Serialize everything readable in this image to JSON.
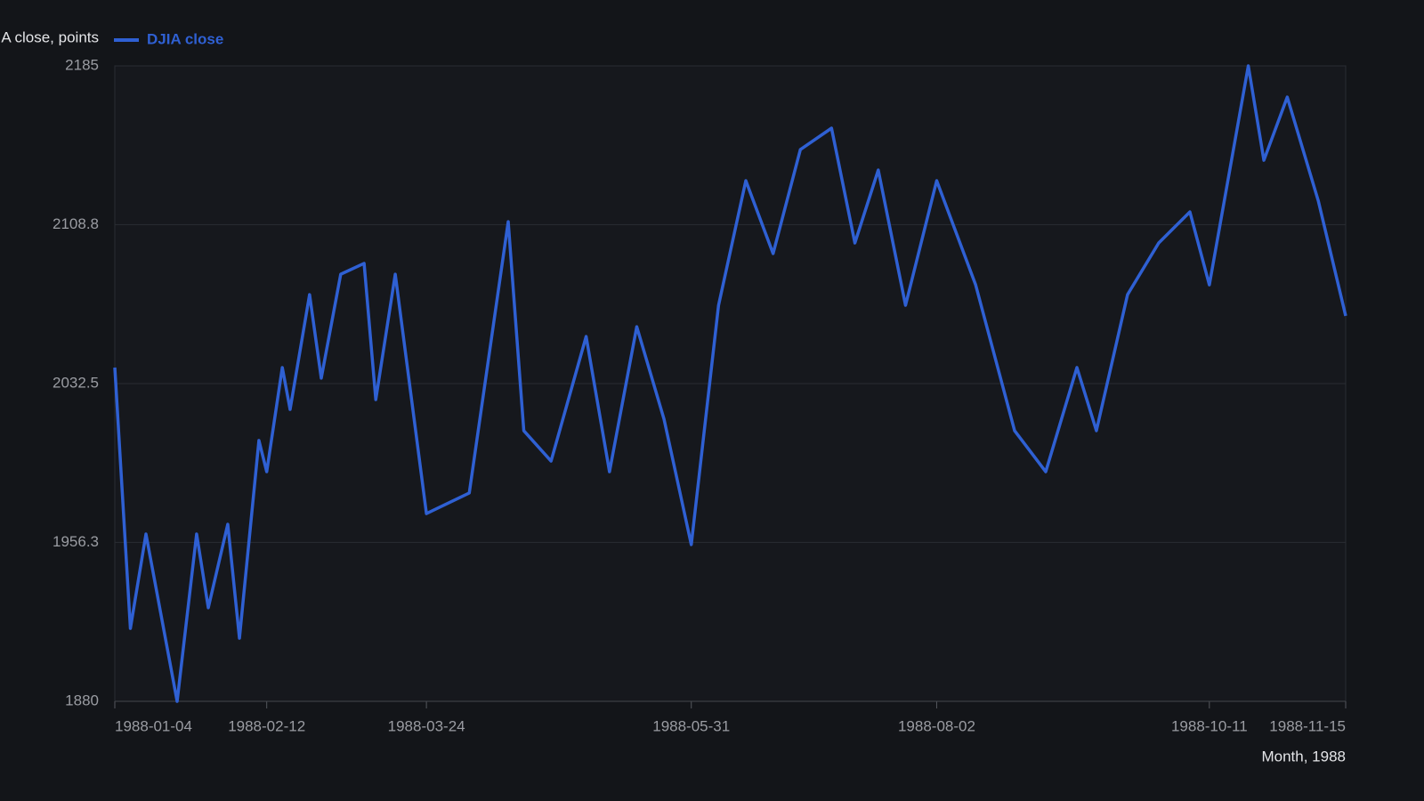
{
  "chart_data": {
    "type": "line",
    "y_label": "DJIA close, points",
    "x_label": "Month, 1988",
    "x": [
      "1988-01-04",
      "1988-01-08",
      "1988-01-12",
      "1988-01-20",
      "1988-01-25",
      "1988-01-28",
      "1988-02-02",
      "1988-02-05",
      "1988-02-10",
      "1988-02-12",
      "1988-02-16",
      "1988-02-18",
      "1988-02-23",
      "1988-02-26",
      "1988-03-02",
      "1988-03-08",
      "1988-03-11",
      "1988-03-16",
      "1988-03-24",
      "1988-04-04",
      "1988-04-14",
      "1988-04-18",
      "1988-04-25",
      "1988-05-04",
      "1988-05-10",
      "1988-05-17",
      "1988-05-24",
      "1988-05-31",
      "1988-06-07",
      "1988-06-14",
      "1988-06-21",
      "1988-06-28",
      "1988-07-06",
      "1988-07-12",
      "1988-07-18",
      "1988-07-25",
      "1988-08-02",
      "1988-08-12",
      "1988-08-22",
      "1988-08-30",
      "1988-09-07",
      "1988-09-12",
      "1988-09-20",
      "1988-09-28",
      "1988-10-06",
      "1988-10-11",
      "1988-10-21",
      "1988-10-25",
      "1988-10-31",
      "1988-11-08",
      "1988-11-15"
    ],
    "series": [
      {
        "name": "DJIA close",
        "color": "#2f60d3",
        "values": [
          2040.2,
          1915,
          1960.3,
          1880,
          1960.3,
          1924.9,
          1965,
          1910.3,
          2005.2,
          1990.2,
          2040.2,
          2020.1,
          2075.2,
          2035.1,
          2085,
          2090.2,
          2024.8,
          2085,
          1970.1,
          1980,
          2110.2,
          2009.9,
          1995.3,
          2055.1,
          1990.2,
          2059.8,
          2015.4,
          1955.2,
          2070.1,
          2129.9,
          2094.9,
          2144.8,
          2155.1,
          2100,
          2135,
          2070.1,
          2129.9,
          2079.9,
          2009.9,
          1990.2,
          2040.2,
          2009.9,
          2075.2,
          2100,
          2114.9,
          2079.9,
          2185,
          2139.7,
          2170,
          2120,
          2065
        ]
      }
    ],
    "xlim": [
      "1988-01-04",
      "1988-11-15"
    ],
    "xticks": [
      "1988-01-04",
      "1988-02-12",
      "1988-03-24",
      "1988-05-31",
      "1988-08-02",
      "1988-10-11",
      "1988-11-15"
    ],
    "ylim": [
      1880,
      2185
    ],
    "yticks": [
      1880,
      1956.3,
      2032.5,
      2108.8,
      2185
    ],
    "grid": true
  }
}
